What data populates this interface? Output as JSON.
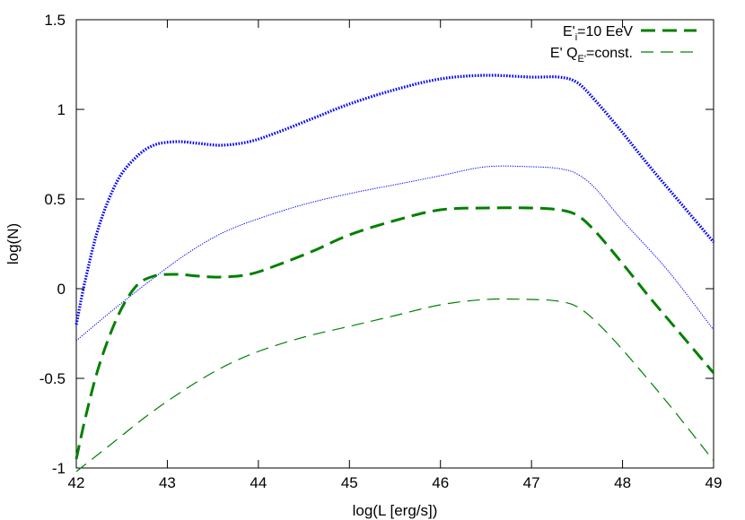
{
  "chart_data": {
    "type": "line",
    "xlabel": "log(L [erg/s])",
    "ylabel": "log(N)",
    "xlim": [
      42,
      49
    ],
    "ylim": [
      -1,
      1.5
    ],
    "x_ticks": [
      "42",
      "43",
      "44",
      "45",
      "46",
      "47",
      "48",
      "49"
    ],
    "y_ticks": [
      "-1",
      "-0.5",
      "0",
      "0.5",
      "1",
      "1.5"
    ],
    "grid": false,
    "legend_position": "top-right",
    "legend": [
      {
        "text_main": "E'",
        "text_sub": "i",
        "text_tail": "=10 EeV",
        "style": "thick-dash",
        "color": "#008000"
      },
      {
        "text_main": "E' Q",
        "text_sub": "E'",
        "text_tail": "=const.",
        "style": "thin-dash",
        "color": "#008000"
      }
    ],
    "series": [
      {
        "color": "#0000ff",
        "style": "thick-dot",
        "points": [
          [
            42.0,
            -0.2
          ],
          [
            42.1,
            0.05
          ],
          [
            42.25,
            0.35
          ],
          [
            42.45,
            0.6
          ],
          [
            42.65,
            0.73
          ],
          [
            42.85,
            0.8
          ],
          [
            43.1,
            0.82
          ],
          [
            43.35,
            0.81
          ],
          [
            43.6,
            0.8
          ],
          [
            43.9,
            0.82
          ],
          [
            44.2,
            0.87
          ],
          [
            44.6,
            0.95
          ],
          [
            45.0,
            1.03
          ],
          [
            45.5,
            1.11
          ],
          [
            46.0,
            1.17
          ],
          [
            46.5,
            1.19
          ],
          [
            47.0,
            1.18
          ],
          [
            47.3,
            1.18
          ],
          [
            47.5,
            1.15
          ],
          [
            47.7,
            1.05
          ],
          [
            48.0,
            0.87
          ],
          [
            48.3,
            0.68
          ],
          [
            48.6,
            0.5
          ],
          [
            49.0,
            0.26
          ]
        ]
      },
      {
        "color": "#0000ff",
        "style": "thin-dot",
        "points": [
          [
            42.0,
            -0.29
          ],
          [
            42.4,
            -0.12
          ],
          [
            42.8,
            0.04
          ],
          [
            43.2,
            0.19
          ],
          [
            43.6,
            0.31
          ],
          [
            44.0,
            0.39
          ],
          [
            44.5,
            0.47
          ],
          [
            45.0,
            0.53
          ],
          [
            45.5,
            0.58
          ],
          [
            46.0,
            0.63
          ],
          [
            46.5,
            0.68
          ],
          [
            47.0,
            0.68
          ],
          [
            47.3,
            0.67
          ],
          [
            47.5,
            0.64
          ],
          [
            47.7,
            0.56
          ],
          [
            48.0,
            0.38
          ],
          [
            48.5,
            0.1
          ],
          [
            49.0,
            -0.23
          ]
        ]
      },
      {
        "color": "#008000",
        "style": "thick-dash",
        "points": [
          [
            42.0,
            -0.95
          ],
          [
            42.1,
            -0.72
          ],
          [
            42.25,
            -0.43
          ],
          [
            42.45,
            -0.16
          ],
          [
            42.65,
            0.01
          ],
          [
            42.85,
            0.07
          ],
          [
            43.1,
            0.08
          ],
          [
            43.35,
            0.07
          ],
          [
            43.6,
            0.065
          ],
          [
            43.9,
            0.08
          ],
          [
            44.2,
            0.13
          ],
          [
            44.6,
            0.21
          ],
          [
            45.0,
            0.3
          ],
          [
            45.5,
            0.38
          ],
          [
            46.0,
            0.44
          ],
          [
            46.5,
            0.45
          ],
          [
            47.0,
            0.45
          ],
          [
            47.3,
            0.44
          ],
          [
            47.5,
            0.41
          ],
          [
            47.7,
            0.32
          ],
          [
            48.0,
            0.14
          ],
          [
            48.3,
            -0.05
          ],
          [
            48.6,
            -0.23
          ],
          [
            49.0,
            -0.47
          ]
        ]
      },
      {
        "color": "#008000",
        "style": "thin-dash",
        "points": [
          [
            42.0,
            -1.02
          ],
          [
            42.4,
            -0.86
          ],
          [
            42.8,
            -0.7
          ],
          [
            43.2,
            -0.56
          ],
          [
            43.6,
            -0.44
          ],
          [
            44.0,
            -0.35
          ],
          [
            44.5,
            -0.27
          ],
          [
            45.0,
            -0.21
          ],
          [
            45.5,
            -0.15
          ],
          [
            46.0,
            -0.09
          ],
          [
            46.5,
            -0.06
          ],
          [
            47.0,
            -0.06
          ],
          [
            47.3,
            -0.07
          ],
          [
            47.5,
            -0.1
          ],
          [
            47.7,
            -0.18
          ],
          [
            48.0,
            -0.34
          ],
          [
            48.5,
            -0.64
          ],
          [
            49.0,
            -0.96
          ]
        ]
      }
    ]
  }
}
